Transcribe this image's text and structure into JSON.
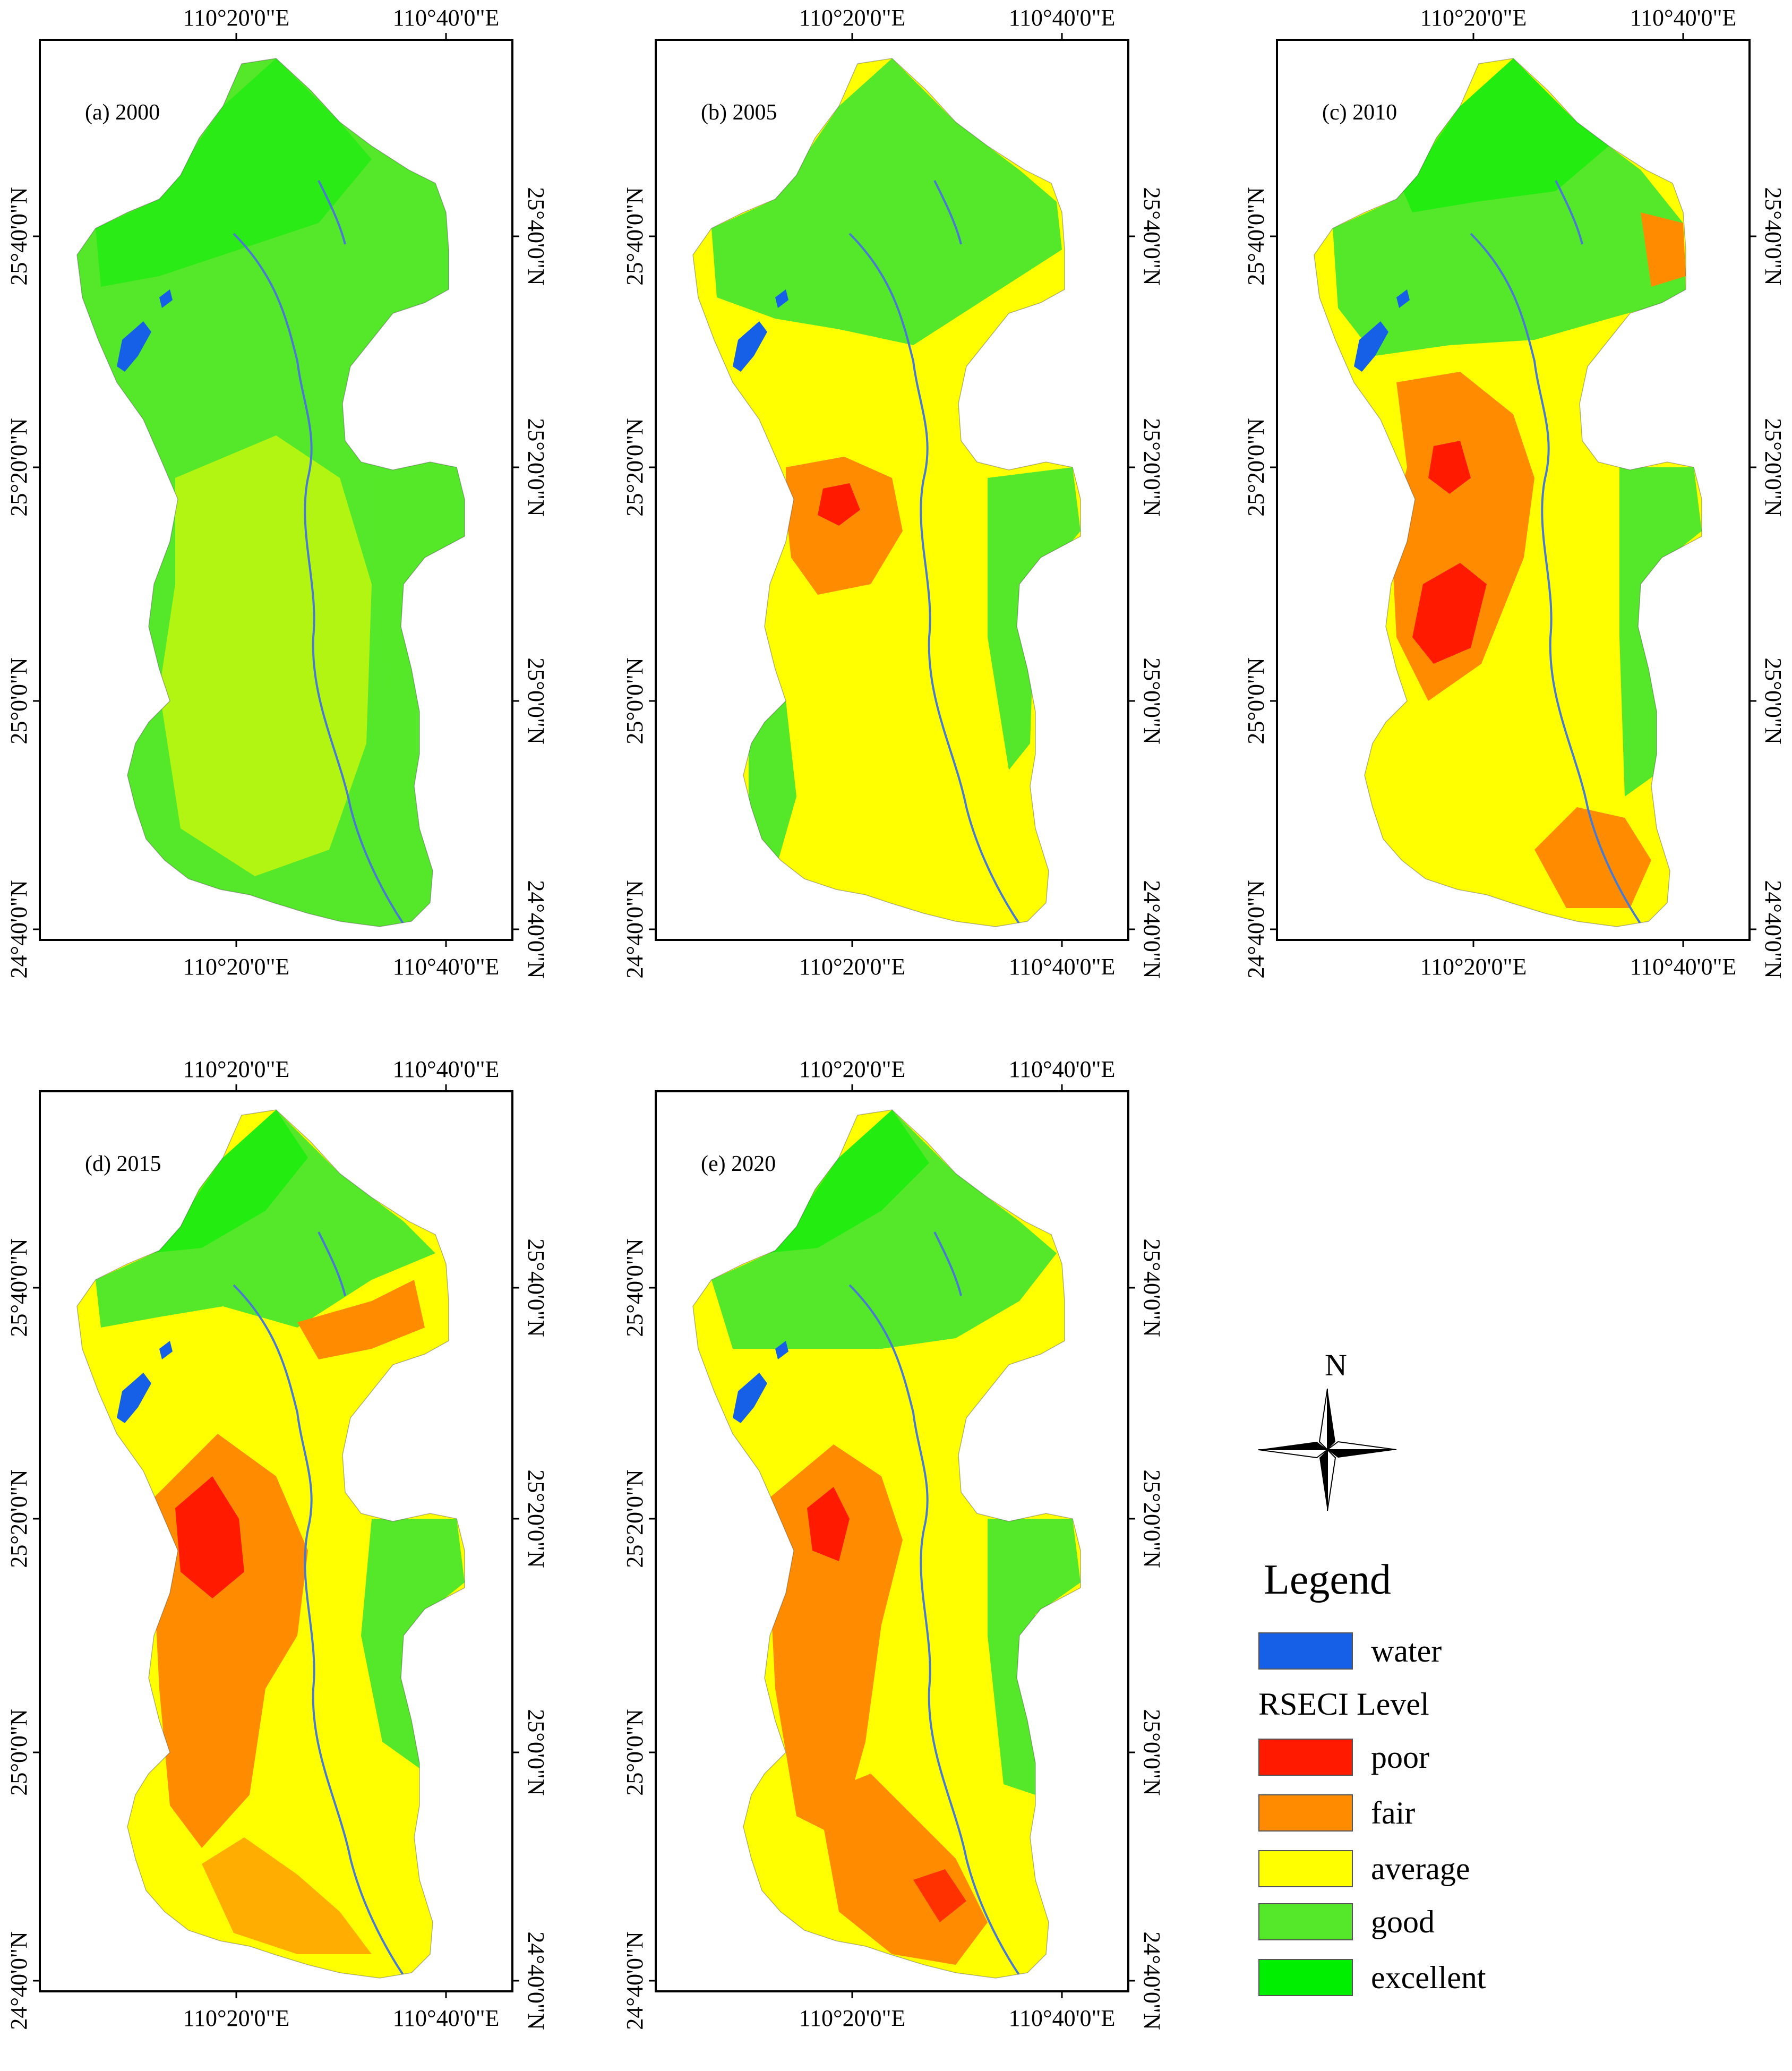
{
  "colors": {
    "water": "#1560e6",
    "poor": "#ff1a00",
    "fair": "#ff8c00",
    "average": "#ffff00",
    "good": "#55e82a",
    "excellent": "#00ee00",
    "river": "#4a7ad0"
  },
  "axes": {
    "lon_labels": [
      "110°20'0\"E",
      "110°40'0\"E"
    ],
    "lon_labels_top": [
      "110°20'0\"E",
      "110°40'0\"E"
    ],
    "lat_labels": [
      "25°40'0\"N",
      "25°20'0\"N",
      "25°0'0\"N",
      "24°40'0\"N"
    ]
  },
  "panels": [
    {
      "id": "a",
      "label": "(a) 2000",
      "year": 2000,
      "pattern": "mostly-good"
    },
    {
      "id": "b",
      "label": "(b) 2005",
      "year": 2005,
      "pattern": "average-center"
    },
    {
      "id": "c",
      "label": "(c) 2010",
      "year": 2010,
      "pattern": "fair-poor-center"
    },
    {
      "id": "d",
      "label": "(d) 2015",
      "year": 2015,
      "pattern": "poor-center"
    },
    {
      "id": "e",
      "label": "(e) 2020",
      "year": 2020,
      "pattern": "fair-center"
    }
  ],
  "top_lon_labels_per_panel": {
    "a": [
      "110°20'0\"E",
      "110°40'0\"E"
    ],
    "b": [
      "110°20'0\"E",
      "110°40'0\"E"
    ],
    "c": [
      "110°20'0\"E",
      "110°40'0\"E"
    ],
    "d": [
      "110°20'0\"E",
      "110°40'0\"E"
    ],
    "e": [
      "110°20'0\"E",
      "110°40'0\"E"
    ]
  },
  "legend": {
    "north_label": "N",
    "title": "Legend",
    "water_label": "water",
    "subtitle": "RSECI Level",
    "levels": [
      {
        "key": "poor",
        "label": "poor"
      },
      {
        "key": "fair",
        "label": "fair"
      },
      {
        "key": "average",
        "label": "average"
      },
      {
        "key": "good",
        "label": "good"
      },
      {
        "key": "excellent",
        "label": "excellent"
      }
    ]
  }
}
